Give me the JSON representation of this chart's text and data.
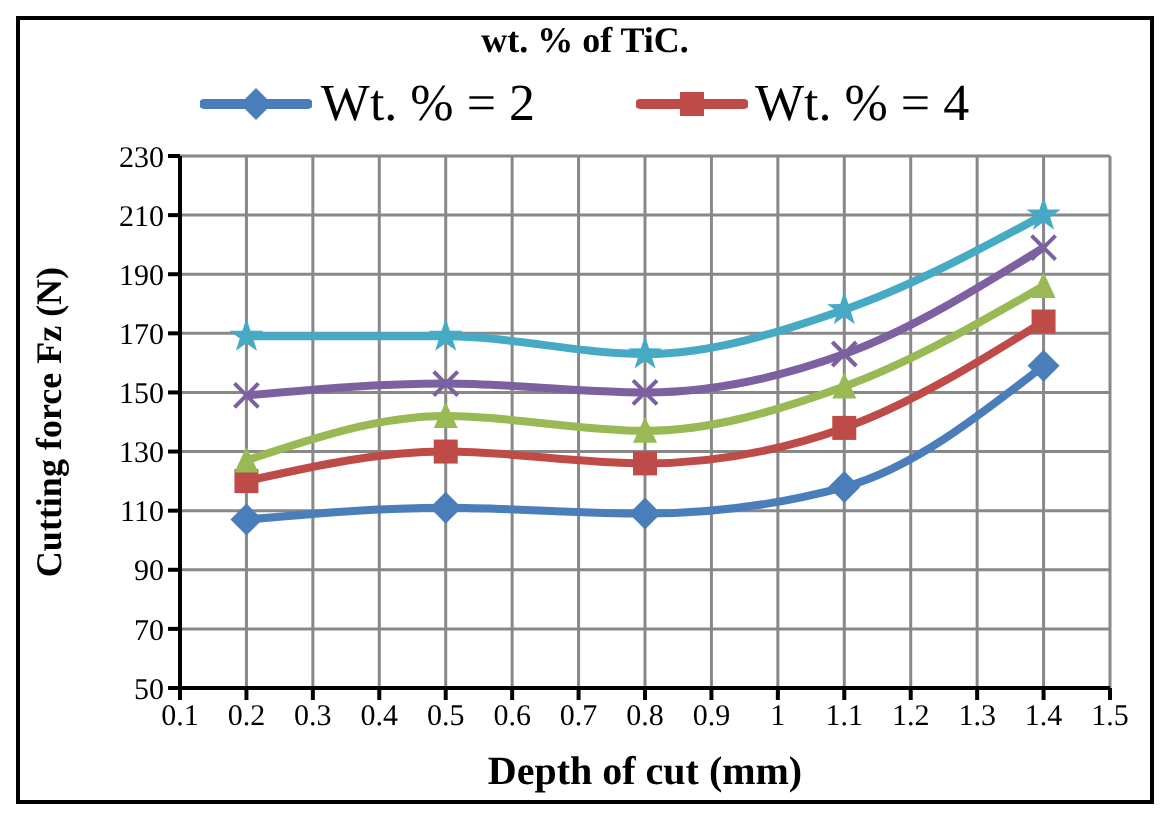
{
  "chart_data": {
    "type": "line",
    "title": "wt. % of TiC.",
    "xlabel": "Depth of cut (mm)",
    "ylabel": "Cutting force Fz (N)",
    "x": [
      0.2,
      0.5,
      0.8,
      1.1,
      1.4
    ],
    "xlim": [
      0.1,
      1.5
    ],
    "xticks": [
      0.1,
      0.2,
      0.3,
      0.4,
      0.5,
      0.6,
      0.7,
      0.8,
      0.9,
      1,
      1.1,
      1.2,
      1.3,
      1.4,
      1.5
    ],
    "ylim": [
      50,
      230
    ],
    "yticks": [
      50,
      70,
      90,
      110,
      130,
      150,
      170,
      190,
      210,
      230
    ],
    "grid": true,
    "legend": "top",
    "line_style": "solid",
    "series": [
      {
        "name": "Wt. % = 2",
        "color": "#4a7ebb",
        "marker": "diamond",
        "values": [
          107,
          111,
          109,
          118,
          159
        ]
      },
      {
        "name": "Wt. % = 4",
        "color": "#be4b48",
        "marker": "square",
        "values": [
          120,
          130,
          126,
          138,
          174
        ]
      },
      {
        "color": "#98b954",
        "marker": "triangle",
        "values": [
          127,
          142,
          137,
          152,
          186
        ]
      },
      {
        "color": "#7d60a0",
        "marker": "cross",
        "values": [
          149,
          153,
          150,
          163,
          199
        ]
      },
      {
        "color": "#46aac5",
        "marker": "star",
        "values": [
          169,
          169,
          163,
          178,
          210
        ]
      }
    ]
  }
}
